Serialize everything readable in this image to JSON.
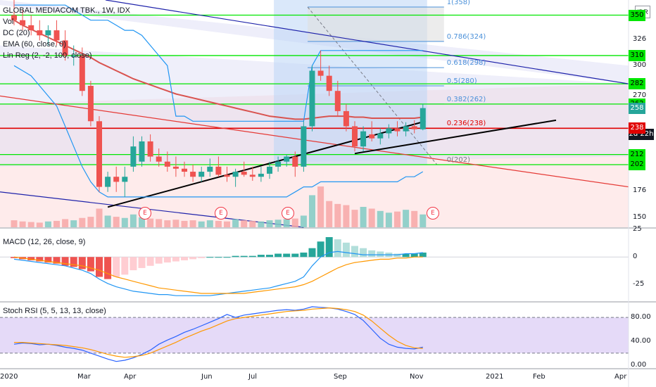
{
  "header": {
    "title": "GLOBAL MEDIACOM TBK., 1W, IDX",
    "currency": "IDR",
    "indicators": [
      "Vol",
      "DC (20)",
      "EMA (60, close, 0)",
      "Lin Reg (2, -2, 100, close)"
    ]
  },
  "macd_label": "MACD (12, 26, close, 9)",
  "stoch_label": "Stoch RSI (5, 5, 13, 13, close)",
  "countdown_label": "2d 22h",
  "colors": {
    "up": "#26a69a",
    "down": "#ef5350",
    "fib_band": "#b2dfdb",
    "green_level": "#00e600",
    "red_level": "#e00000",
    "stoch_bg": "#e1d4f7",
    "macd_line": "#2196f3",
    "signal_line": "#ff9800"
  },
  "chart_data": [
    {
      "type": "candlestick",
      "title": "GLOBAL MEDIACOM TBK., 1W, IDX",
      "x_labels": [
        "2020",
        "Mar",
        "Apr",
        "Jun",
        "Jul",
        "Sep",
        "Nov",
        "2021",
        "Feb",
        "Apr"
      ],
      "y_ticks": [
        150,
        176,
        202,
        212,
        238,
        258,
        262,
        282,
        300,
        310,
        326,
        350
      ],
      "ylim": [
        140,
        365
      ],
      "candles": [
        {
          "o": 350,
          "h": 365,
          "l": 340,
          "c": 345
        },
        {
          "o": 345,
          "h": 355,
          "l": 335,
          "c": 340
        },
        {
          "o": 340,
          "h": 350,
          "l": 330,
          "c": 335
        },
        {
          "o": 335,
          "h": 345,
          "l": 325,
          "c": 330
        },
        {
          "o": 330,
          "h": 340,
          "l": 320,
          "c": 335
        },
        {
          "o": 335,
          "h": 345,
          "l": 320,
          "c": 325
        },
        {
          "o": 325,
          "h": 335,
          "l": 305,
          "c": 310
        },
        {
          "o": 310,
          "h": 320,
          "l": 300,
          "c": 310
        },
        {
          "o": 310,
          "h": 318,
          "l": 270,
          "c": 275
        },
        {
          "o": 280,
          "h": 285,
          "l": 240,
          "c": 245
        },
        {
          "o": 245,
          "h": 250,
          "l": 175,
          "c": 180
        },
        {
          "o": 180,
          "h": 195,
          "l": 175,
          "c": 190
        },
        {
          "o": 190,
          "h": 200,
          "l": 175,
          "c": 185
        },
        {
          "o": 185,
          "h": 200,
          "l": 170,
          "c": 190
        },
        {
          "o": 200,
          "h": 230,
          "l": 195,
          "c": 220
        },
        {
          "o": 205,
          "h": 230,
          "l": 200,
          "c": 225
        },
        {
          "o": 225,
          "h": 232,
          "l": 205,
          "c": 210
        },
        {
          "o": 210,
          "h": 218,
          "l": 200,
          "c": 205
        },
        {
          "o": 205,
          "h": 215,
          "l": 195,
          "c": 200
        },
        {
          "o": 200,
          "h": 210,
          "l": 190,
          "c": 198
        },
        {
          "o": 198,
          "h": 205,
          "l": 190,
          "c": 195
        },
        {
          "o": 195,
          "h": 202,
          "l": 185,
          "c": 190
        },
        {
          "o": 190,
          "h": 200,
          "l": 185,
          "c": 195
        },
        {
          "o": 195,
          "h": 208,
          "l": 190,
          "c": 200
        },
        {
          "o": 200,
          "h": 210,
          "l": 190,
          "c": 192
        },
        {
          "o": 192,
          "h": 200,
          "l": 185,
          "c": 190
        },
        {
          "o": 190,
          "h": 198,
          "l": 180,
          "c": 195
        },
        {
          "o": 195,
          "h": 205,
          "l": 190,
          "c": 192
        },
        {
          "o": 192,
          "h": 200,
          "l": 186,
          "c": 190
        },
        {
          "o": 190,
          "h": 200,
          "l": 185,
          "c": 193
        },
        {
          "o": 193,
          "h": 205,
          "l": 188,
          "c": 200
        },
        {
          "o": 200,
          "h": 210,
          "l": 195,
          "c": 205
        },
        {
          "o": 205,
          "h": 212,
          "l": 200,
          "c": 210
        },
        {
          "o": 210,
          "h": 215,
          "l": 190,
          "c": 200
        },
        {
          "o": 200,
          "h": 245,
          "l": 195,
          "c": 240
        },
        {
          "o": 240,
          "h": 300,
          "l": 235,
          "c": 295
        },
        {
          "o": 295,
          "h": 315,
          "l": 285,
          "c": 290
        },
        {
          "o": 290,
          "h": 300,
          "l": 270,
          "c": 275
        },
        {
          "o": 275,
          "h": 285,
          "l": 250,
          "c": 255
        },
        {
          "o": 255,
          "h": 262,
          "l": 235,
          "c": 240
        },
        {
          "o": 240,
          "h": 245,
          "l": 215,
          "c": 220
        },
        {
          "o": 220,
          "h": 240,
          "l": 215,
          "c": 235
        },
        {
          "o": 232,
          "h": 245,
          "l": 225,
          "c": 228
        },
        {
          "o": 228,
          "h": 238,
          "l": 222,
          "c": 233
        },
        {
          "o": 233,
          "h": 242,
          "l": 228,
          "c": 238
        },
        {
          "o": 238,
          "h": 245,
          "l": 230,
          "c": 235
        },
        {
          "o": 235,
          "h": 244,
          "l": 230,
          "c": 240
        },
        {
          "o": 240,
          "h": 246,
          "l": 233,
          "c": 237
        },
        {
          "o": 237,
          "h": 262,
          "l": 236,
          "c": 258
        }
      ],
      "volume": [
        12,
        10,
        9,
        8,
        10,
        11,
        14,
        12,
        16,
        18,
        32,
        20,
        18,
        16,
        22,
        17,
        15,
        14,
        12,
        13,
        11,
        12,
        10,
        12,
        11,
        10,
        14,
        12,
        11,
        10,
        12,
        13,
        14,
        15,
        20,
        55,
        70,
        45,
        40,
        38,
        30,
        35,
        32,
        28,
        25,
        27,
        30,
        28,
        22
      ],
      "volume_up": [
        false,
        false,
        false,
        false,
        true,
        false,
        false,
        true,
        false,
        false,
        false,
        true,
        false,
        true,
        true,
        true,
        false,
        false,
        false,
        false,
        false,
        false,
        true,
        true,
        false,
        false,
        true,
        false,
        false,
        true,
        true,
        true,
        true,
        false,
        true,
        true,
        false,
        false,
        false,
        false,
        false,
        true,
        false,
        true,
        true,
        false,
        true,
        false,
        true
      ],
      "ema60": [
        345,
        340,
        336,
        332,
        328,
        324,
        320,
        316,
        312,
        308,
        303,
        299,
        295,
        291,
        287,
        284,
        281,
        278,
        275,
        272,
        270,
        268,
        266,
        264,
        262,
        260,
        258,
        256,
        254,
        252,
        250,
        249,
        248,
        247,
        247,
        248,
        249,
        250,
        250,
        250,
        249,
        249,
        248,
        248,
        248,
        248,
        248,
        248,
        249
      ],
      "donchian_upper": [
        360,
        360,
        360,
        360,
        360,
        360,
        360,
        355,
        350,
        345,
        345,
        345,
        340,
        335,
        335,
        330,
        320,
        310,
        300,
        250,
        250,
        245,
        245,
        245,
        245,
        245,
        245,
        245,
        245,
        245,
        245,
        245,
        245,
        245,
        245,
        300,
        315,
        315,
        315,
        315,
        315,
        315,
        315,
        315,
        315,
        315,
        315,
        315,
        315
      ],
      "donchian_lower": [
        300,
        295,
        290,
        280,
        270,
        260,
        240,
        220,
        200,
        185,
        175,
        170,
        170,
        170,
        170,
        170,
        170,
        170,
        170,
        170,
        170,
        170,
        170,
        170,
        170,
        170,
        170,
        170,
        170,
        170,
        170,
        170,
        170,
        175,
        180,
        180,
        185,
        185,
        185,
        185,
        185,
        185,
        185,
        185,
        185,
        185,
        190,
        190,
        195
      ],
      "fib_levels": [
        {
          "label": "1(358)",
          "value": 358
        },
        {
          "label": "0.786(324)",
          "value": 324
        },
        {
          "label": "0.618(298)",
          "value": 298
        },
        {
          "label": "0.5(280)",
          "value": 280
        },
        {
          "label": "0.382(262)",
          "value": 262
        },
        {
          "label": "0.236(238)",
          "value": 238
        },
        {
          "label": "0(202)",
          "value": 202
        }
      ],
      "horizontal_levels_green": [
        350,
        310,
        282,
        262,
        212,
        202
      ],
      "horizontal_level_red": 238,
      "price_badges": [
        "350",
        "326",
        "310",
        "300",
        "282",
        "270",
        "262",
        "258",
        "238",
        "212",
        "202",
        "176",
        "150"
      ],
      "earnings_markers": [
        "E",
        "E",
        "E",
        "E"
      ]
    },
    {
      "type": "bar",
      "title": "MACD (12, 26, close, 9)",
      "y_ticks": [
        25,
        0,
        -25
      ],
      "ylim": [
        -40,
        25
      ],
      "histogram": [
        -1,
        -2,
        -3,
        -4,
        -5,
        -6,
        -8,
        -9,
        -11,
        -13,
        -18,
        -20,
        -18,
        -16,
        -12,
        -10,
        -8,
        -6,
        -5,
        -4,
        -3,
        -2,
        -1,
        0,
        0,
        0,
        1,
        1,
        1,
        2,
        2,
        3,
        3,
        3,
        4,
        8,
        14,
        18,
        16,
        13,
        10,
        8,
        6,
        5,
        4,
        3,
        3,
        3,
        4
      ],
      "macd": [
        -2,
        -3,
        -4,
        -5,
        -6,
        -7,
        -8,
        -10,
        -12,
        -15,
        -20,
        -24,
        -27,
        -29,
        -31,
        -32,
        -33,
        -34,
        -34,
        -35,
        -35,
        -35,
        -35,
        -35,
        -34,
        -33,
        -32,
        -31,
        -30,
        -29,
        -28,
        -26,
        -24,
        -22,
        -18,
        -8,
        0,
        4,
        5,
        4,
        3,
        2,
        2,
        2,
        2,
        2,
        3,
        3,
        4
      ],
      "signal": [
        0,
        -1,
        -2,
        -3,
        -4,
        -5,
        -6,
        -7,
        -8,
        -10,
        -12,
        -15,
        -18,
        -20,
        -22,
        -24,
        -26,
        -28,
        -29,
        -30,
        -31,
        -32,
        -33,
        -33,
        -33,
        -33,
        -33,
        -33,
        -32,
        -31,
        -30,
        -29,
        -28,
        -27,
        -25,
        -22,
        -18,
        -14,
        -10,
        -7,
        -5,
        -4,
        -3,
        -2,
        -2,
        -1,
        -1,
        0,
        0
      ]
    },
    {
      "type": "line",
      "title": "Stoch RSI (5, 5, 13, 13, close)",
      "y_ticks": [
        80,
        40,
        0
      ],
      "ylim": [
        -5,
        105
      ],
      "k": [
        35,
        37,
        36,
        34,
        35,
        33,
        30,
        28,
        25,
        20,
        15,
        10,
        6,
        8,
        12,
        18,
        25,
        35,
        42,
        48,
        55,
        60,
        66,
        72,
        78,
        85,
        80,
        84,
        86,
        88,
        90,
        92,
        93,
        92,
        94,
        98,
        97,
        96,
        94,
        90,
        85,
        75,
        60,
        45,
        35,
        30,
        28,
        27,
        30
      ],
      "d": [
        38,
        38,
        37,
        36,
        35,
        34,
        33,
        31,
        29,
        26,
        22,
        18,
        15,
        13,
        14,
        16,
        20,
        26,
        32,
        38,
        45,
        51,
        57,
        62,
        68,
        74,
        78,
        80,
        82,
        84,
        86,
        88,
        90,
        91,
        92,
        94,
        95,
        96,
        95,
        93,
        90,
        84,
        74,
        62,
        50,
        40,
        33,
        29,
        28
      ]
    }
  ]
}
